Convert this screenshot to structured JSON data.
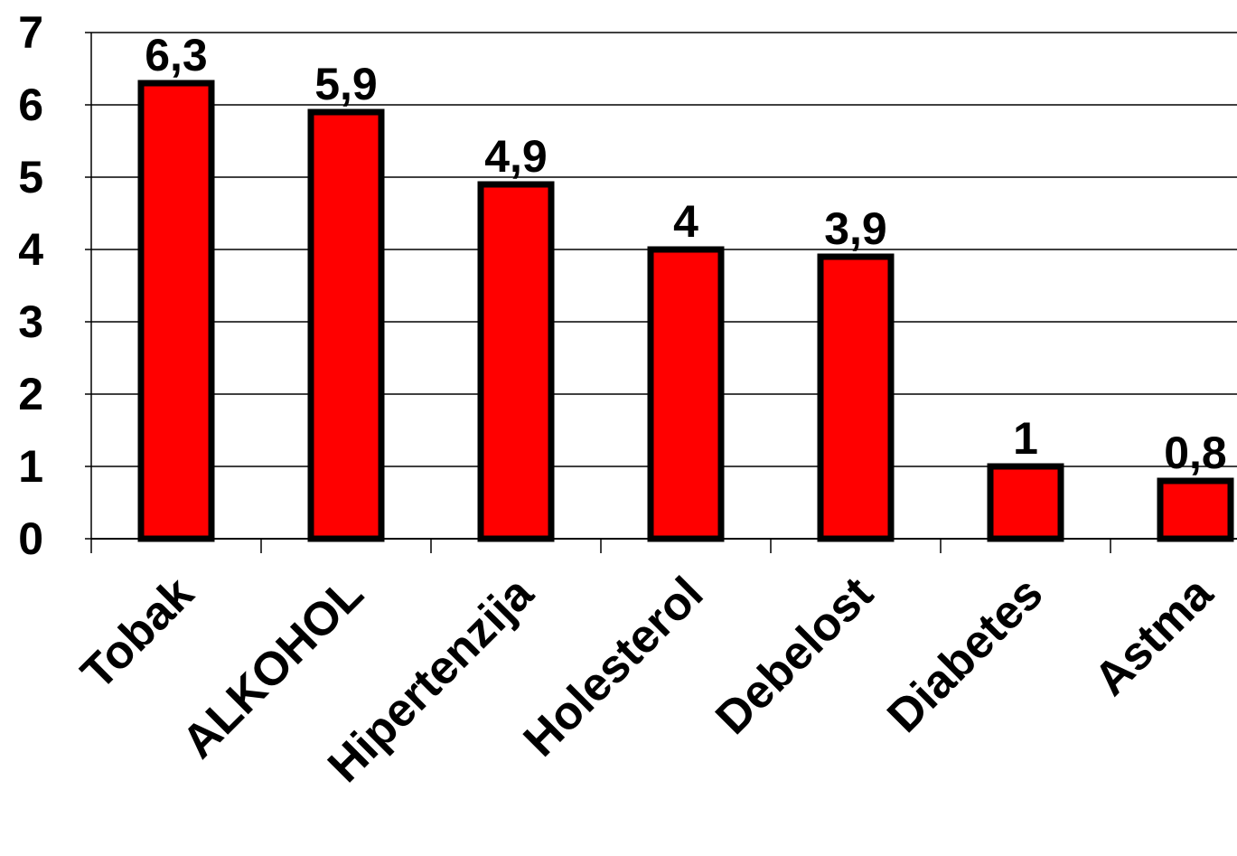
{
  "chart_data": {
    "type": "bar",
    "title": "",
    "xlabel": "",
    "ylabel": "",
    "categories": [
      "Tobak",
      "ALKOHOL",
      "Hipertenzija",
      "Holesterol",
      "Debelost",
      "Diabetes",
      "Astma"
    ],
    "values": [
      6.3,
      5.9,
      4.9,
      4,
      3.9,
      1,
      0.8
    ],
    "data_labels": [
      "6,3",
      "5,9",
      "4,9",
      "4",
      "3,9",
      "1",
      "0,8"
    ],
    "ylim": [
      0,
      7
    ],
    "y_ticks": [
      0,
      1,
      2,
      3,
      4,
      5,
      6,
      7
    ],
    "y_tick_labels": [
      "0",
      "1",
      "2",
      "3",
      "4",
      "5",
      "6",
      "7"
    ],
    "grid": true,
    "legend": "none",
    "colors": {
      "bar_fill": "#ff0000",
      "bar_stroke": "#000000",
      "grid": "#000000",
      "text": "#000000",
      "background": "#ffffff"
    }
  }
}
